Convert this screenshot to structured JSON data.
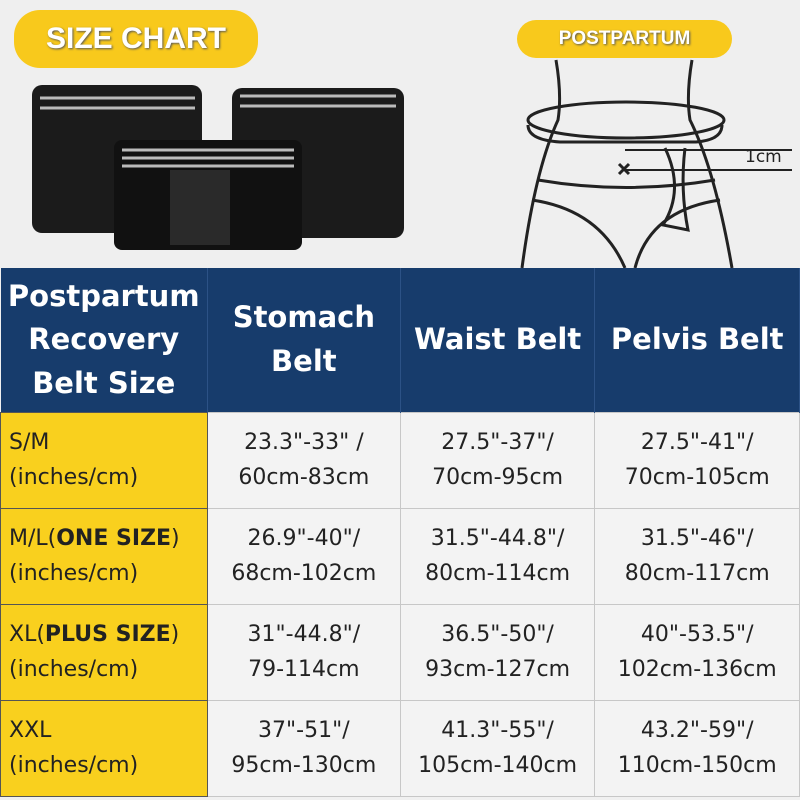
{
  "banner": {
    "title": "SIZE CHART",
    "diagram_label": "POSTPARTUM",
    "measure_label": "1cm"
  },
  "colors": {
    "header": "#173c6c",
    "accent": "#f9d01e"
  },
  "table": {
    "headers": [
      "Postpartum Recovery Belt Size",
      "Stomach Belt",
      "Waist Belt",
      "Pelvis Belt"
    ],
    "rows": [
      {
        "size": "S/M",
        "size_bold": "",
        "size_close": "",
        "unit": "(inches/cm)",
        "cells": [
          [
            "23.3\"-33\" /",
            "60cm-83cm"
          ],
          [
            "27.5\"-37\"/",
            "70cm-95cm"
          ],
          [
            "27.5\"-41\"/",
            "70cm-105cm"
          ]
        ]
      },
      {
        "size": "M/L(",
        "size_bold": "ONE SIZE",
        "size_close": ")",
        "unit": "(inches/cm)",
        "cells": [
          [
            "26.9\"-40\"/",
            "68cm-102cm"
          ],
          [
            "31.5\"-44.8\"/",
            "80cm-114cm"
          ],
          [
            "31.5\"-46\"/",
            "80cm-117cm"
          ]
        ]
      },
      {
        "size": "XL(",
        "size_bold": "PLUS SIZE",
        "size_close": ")",
        "unit": "(inches/cm)",
        "cells": [
          [
            "31\"-44.8\"/",
            "79-114cm"
          ],
          [
            "36.5\"-50\"/",
            "93cm-127cm"
          ],
          [
            "40\"-53.5\"/",
            "102cm-136cm"
          ]
        ]
      },
      {
        "size": "XXL",
        "size_bold": "",
        "size_close": "",
        "unit": "(inches/cm)",
        "cells": [
          [
            "37\"-51\"/",
            "95cm-130cm"
          ],
          [
            "41.3\"-55\"/",
            "105cm-140cm"
          ],
          [
            "43.2\"-59\"/",
            "110cm-150cm"
          ]
        ]
      }
    ]
  }
}
